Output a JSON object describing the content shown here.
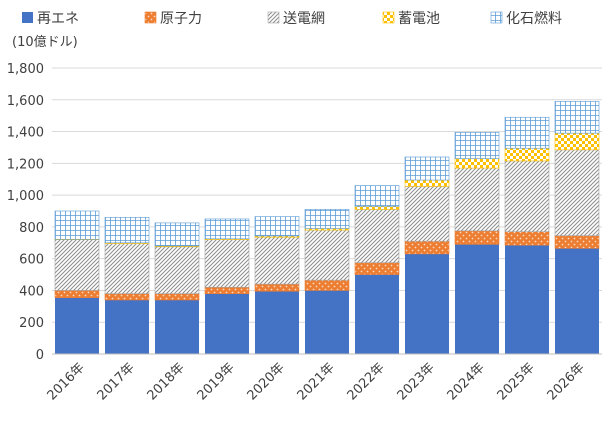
{
  "chart_data": {
    "type": "bar",
    "stacked": true,
    "title": "",
    "unit_label": "(10億ドル)",
    "xlabel": "",
    "ylabel": "",
    "ylim": [
      0,
      1800
    ],
    "yticks": [
      0,
      200,
      400,
      600,
      800,
      1000,
      1200,
      1400,
      1600,
      1800
    ],
    "ytick_labels": [
      "0",
      "200",
      "400",
      "600",
      "800",
      "1,000",
      "1,200",
      "1,400",
      "1,600",
      "1,800"
    ],
    "grid": true,
    "legend_position": "top",
    "categories": [
      "2016年",
      "2017年",
      "2018年",
      "2019年",
      "2020年",
      "2021年",
      "2022年",
      "2023年",
      "2024年",
      "2025年",
      "2026年"
    ],
    "series": [
      {
        "name": "再エネ",
        "color": "#4472C4",
        "pattern": "solid",
        "values": [
          355,
          340,
          340,
          380,
          395,
          400,
          500,
          630,
          690,
          685,
          665
        ]
      },
      {
        "name": "原子力",
        "color": "#ED7D31",
        "pattern": "dots",
        "values": [
          45,
          40,
          40,
          40,
          45,
          65,
          75,
          80,
          85,
          85,
          80
        ]
      },
      {
        "name": "送電網",
        "color": "#A5A5A5",
        "pattern": "diagonal",
        "values": [
          320,
          315,
          295,
          300,
          295,
          315,
          335,
          345,
          395,
          445,
          540
        ]
      },
      {
        "name": "蓄電池",
        "color": "#FFC000",
        "pattern": "checker",
        "values": [
          2,
          5,
          5,
          5,
          8,
          10,
          20,
          40,
          60,
          80,
          105
        ]
      },
      {
        "name": "化石燃料",
        "color": "#5B9BD5",
        "pattern": "grid",
        "values": [
          178,
          160,
          145,
          125,
          122,
          120,
          130,
          145,
          165,
          195,
          200
        ]
      }
    ]
  }
}
